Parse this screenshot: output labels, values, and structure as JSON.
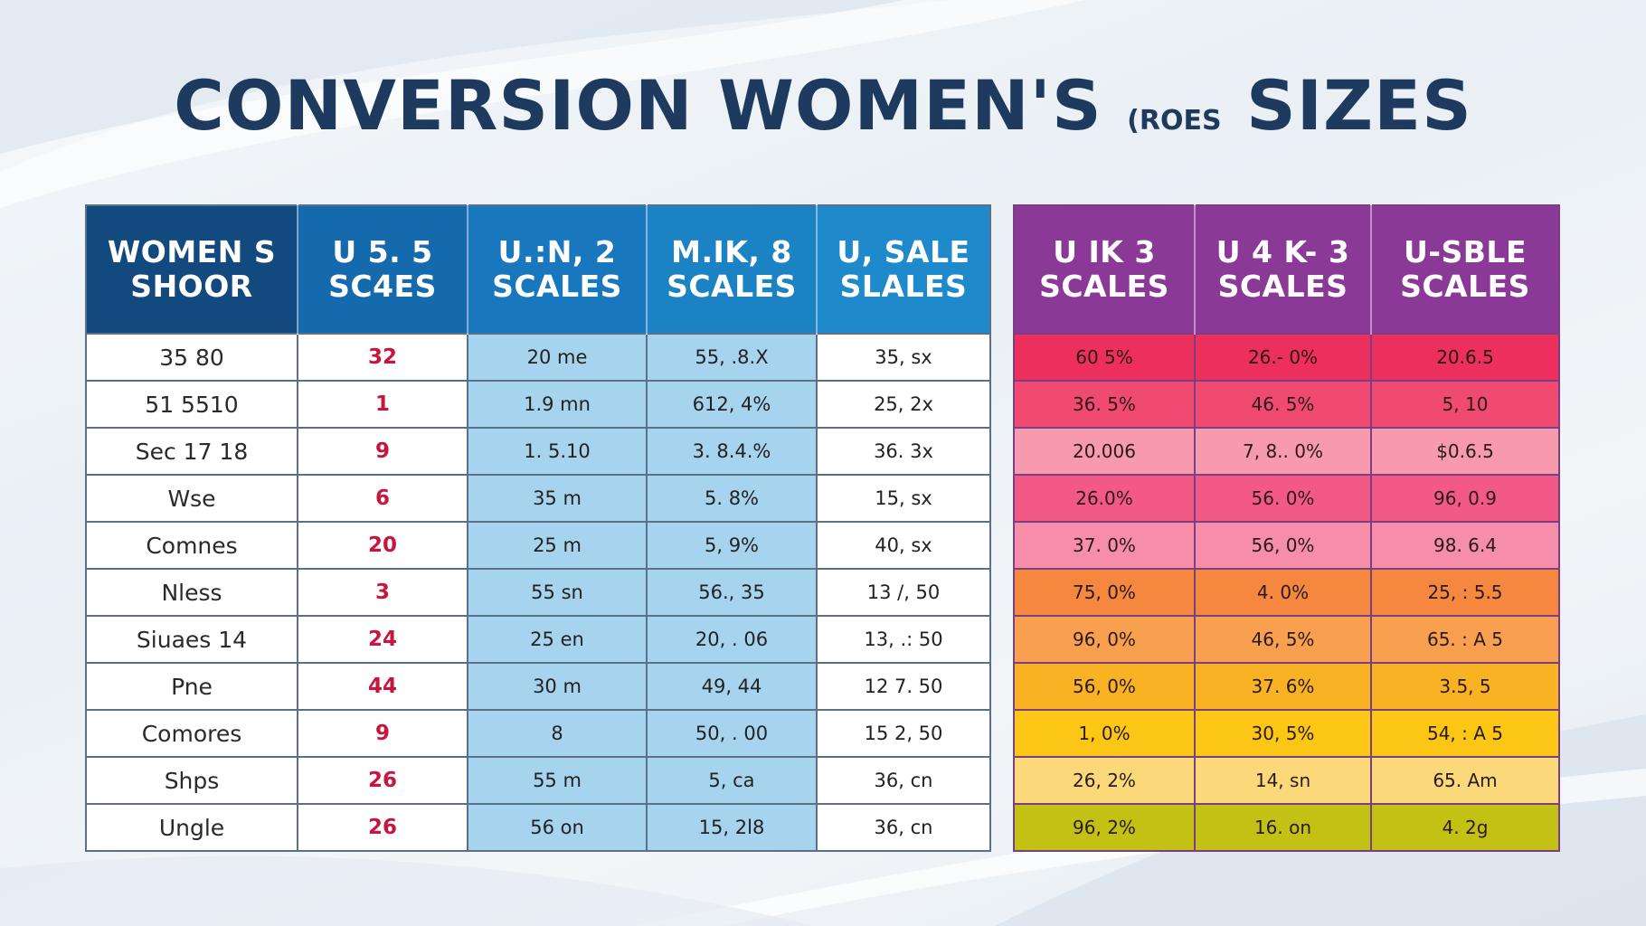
{
  "title": {
    "main": "CONVERSION WOMEN'S",
    "small": "(ROES",
    "tail": "SIZES"
  },
  "colors": {
    "title": "#1e3a5f",
    "left_header": [
      "#124a80",
      "#1569ad",
      "#1877bd",
      "#1b82c4",
      "#1e8acb"
    ],
    "right_header": "#8a3a96",
    "right_rows": [
      "#ec2f5d",
      "#f14a72",
      "#f79aad",
      "#f25a85",
      "#f68eaa",
      "#f5873f",
      "#f8a050",
      "#f9b224",
      "#fcc617",
      "#fbd97a",
      "#c2c114"
    ]
  },
  "left_table": {
    "headers": [
      [
        "WOMEN S",
        "SHOOR"
      ],
      [
        "U 5. 5",
        "SC4ES"
      ],
      [
        "U.:N, 2",
        "SCALES"
      ],
      [
        "M.IK, 8",
        "SCALES"
      ],
      [
        "U, SALE",
        "SLALES"
      ]
    ],
    "rows": [
      [
        "35 80",
        "32",
        "20  me",
        "55, .8.X",
        "35, sx"
      ],
      [
        "51 5510",
        "1",
        "1.9  mn",
        "612, 4%",
        "25, 2x"
      ],
      [
        "Sec 17 18",
        "9",
        "1. 5.10",
        "3. 8.4.%",
        "36. 3x"
      ],
      [
        "Wse",
        "6",
        "35  m",
        "5. 8%",
        "15, sx"
      ],
      [
        "Comnes",
        "20",
        "25  m",
        "5, 9%",
        "40, sx"
      ],
      [
        "Nless",
        "3",
        "55  sn",
        "56., 35",
        "13 /, 50"
      ],
      [
        "Siuaes 14",
        "24",
        "25  en",
        "20, . 06",
        "13, .: 50"
      ],
      [
        "Pne",
        "44",
        "30  m",
        "49, 44",
        "12 7. 50"
      ],
      [
        "Comores",
        "9",
        "8",
        "50, . 00",
        "15 2, 50"
      ],
      [
        "Shps",
        "26",
        "55  m",
        "5, ca",
        "36, cn"
      ],
      [
        "Ungle",
        "26",
        "56  on",
        "15, 2l8",
        "36, cn"
      ]
    ]
  },
  "right_table": {
    "headers": [
      [
        "U IK 3",
        "SCALES"
      ],
      [
        "U 4 K- 3",
        "SCALES"
      ],
      [
        "U-SBLE",
        "SCALES"
      ]
    ],
    "rows": [
      [
        "60 5% ",
        "26.- 0%",
        "20.6.5"
      ],
      [
        "36. 5%",
        "46. 5%",
        "5, 10"
      ],
      [
        "20.006",
        "7, 8.. 0%",
        "$0.6.5"
      ],
      [
        "26.0%",
        "56. 0%",
        "96, 0.9"
      ],
      [
        "37. 0%",
        "56, 0%",
        "98. 6.4"
      ],
      [
        "75, 0%",
        "4. 0%",
        "25, : 5.5"
      ],
      [
        "96, 0%",
        "46, 5%",
        "65. : A 5"
      ],
      [
        "56, 0%",
        "37. 6%",
        "3.5, 5"
      ],
      [
        "1, 0%",
        "30, 5%",
        "54, : A 5"
      ],
      [
        "26, 2%",
        "14, sn",
        "65. Am"
      ],
      [
        "96, 2%",
        "16. on",
        "4. 2g"
      ]
    ]
  }
}
